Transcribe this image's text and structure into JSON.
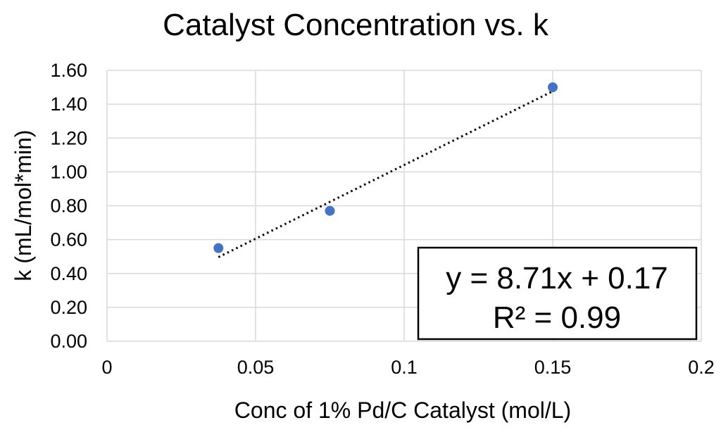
{
  "chart_data": {
    "type": "scatter",
    "title": "Catalyst Concentration vs. k",
    "xlabel": "Conc of 1% Pd/C Catalyst (mol/L)",
    "ylabel": "k (mL/mol*min)",
    "xlim": [
      0,
      0.2
    ],
    "ylim": [
      0,
      1.6
    ],
    "x_ticks": [
      0,
      0.05,
      0.1,
      0.15,
      0.2
    ],
    "x_tick_labels": [
      "0",
      "0.05",
      "0.1",
      "0.15",
      "0.2"
    ],
    "y_ticks": [
      0,
      0.2,
      0.4,
      0.6,
      0.8,
      1.0,
      1.2,
      1.4,
      1.6
    ],
    "y_tick_labels": [
      "0.00",
      "0.20",
      "0.40",
      "0.60",
      "0.80",
      "1.00",
      "1.20",
      "1.40",
      "1.60"
    ],
    "grid": true,
    "series": [
      {
        "points": [
          {
            "x": 0.0375,
            "y": 0.55
          },
          {
            "x": 0.075,
            "y": 0.77
          },
          {
            "x": 0.15,
            "y": 1.5
          }
        ],
        "color": "#4472c4"
      }
    ],
    "trendline": {
      "type": "linear",
      "slope": 8.71,
      "intercept": 0.17,
      "x_range": [
        0.0375,
        0.15
      ],
      "style": "dotted",
      "color": "#000000"
    },
    "annotations": {
      "equation": "y = 8.71x + 0.17",
      "r_squared": "R² = 0.99"
    }
  }
}
